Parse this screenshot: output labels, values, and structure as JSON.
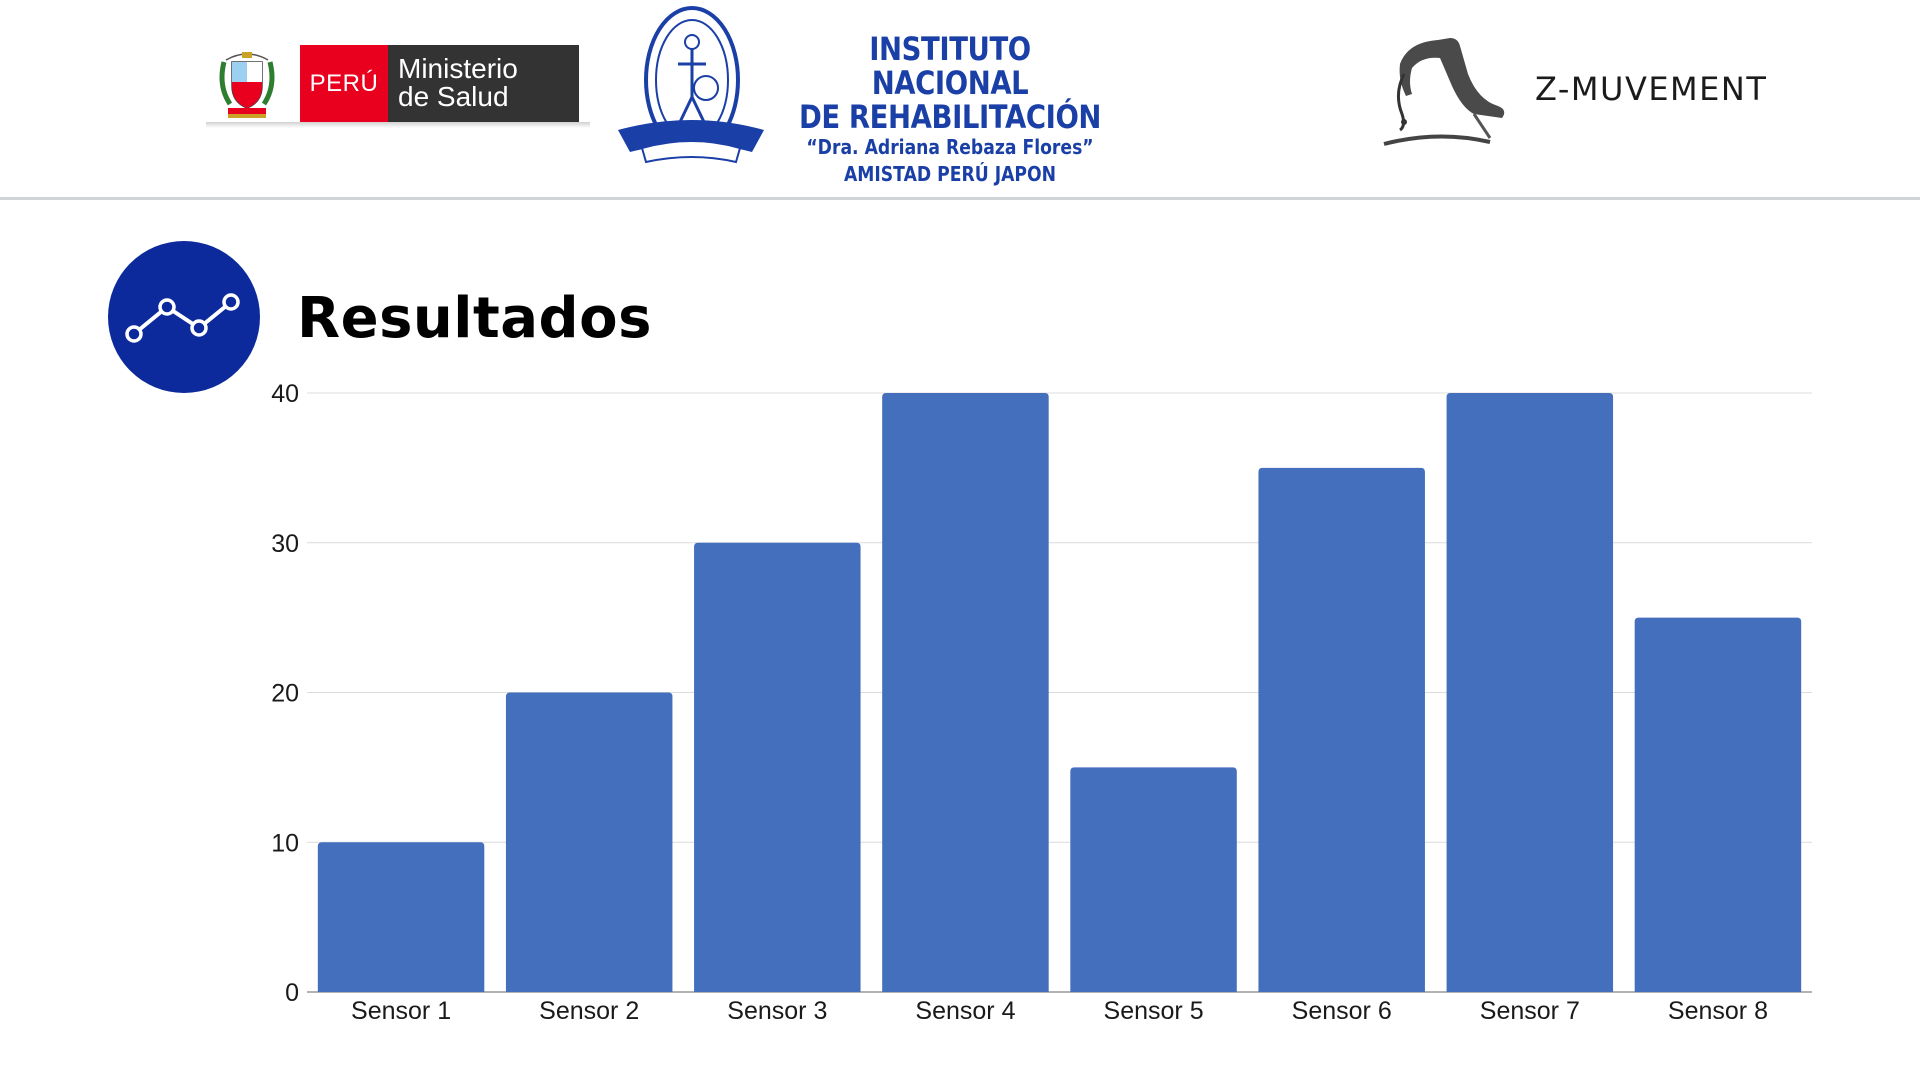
{
  "header": {
    "minsa": {
      "country": "PERÚ",
      "line1": "Ministerio",
      "line2": "de Salud"
    },
    "inr": {
      "line1": "INSTITUTO NACIONAL",
      "line2": "DE REHABILITACIÓN",
      "line3": "“Dra. Adriana Rebaza Flores”",
      "line4": "AMISTAD PERÚ JAPON"
    },
    "brand": "Z-MUVEMENT"
  },
  "section": {
    "title": "Resultados",
    "icon": "line-chart-icon"
  },
  "colors": {
    "bar": "#446fbd",
    "badge": "#0c2a9c",
    "inr_blue": "#1a3fa6",
    "minsa_red": "#e8001e"
  },
  "chart_data": {
    "type": "bar",
    "categories": [
      "Sensor 1",
      "Sensor 2",
      "Sensor 3",
      "Sensor 4",
      "Sensor 5",
      "Sensor 6",
      "Sensor 7",
      "Sensor 8"
    ],
    "values": [
      10,
      20,
      30,
      40,
      15,
      35,
      40,
      25
    ],
    "ylim": [
      0,
      40
    ],
    "yticks": [
      0,
      10,
      20,
      30,
      40
    ],
    "grid": true,
    "legend": "none"
  }
}
